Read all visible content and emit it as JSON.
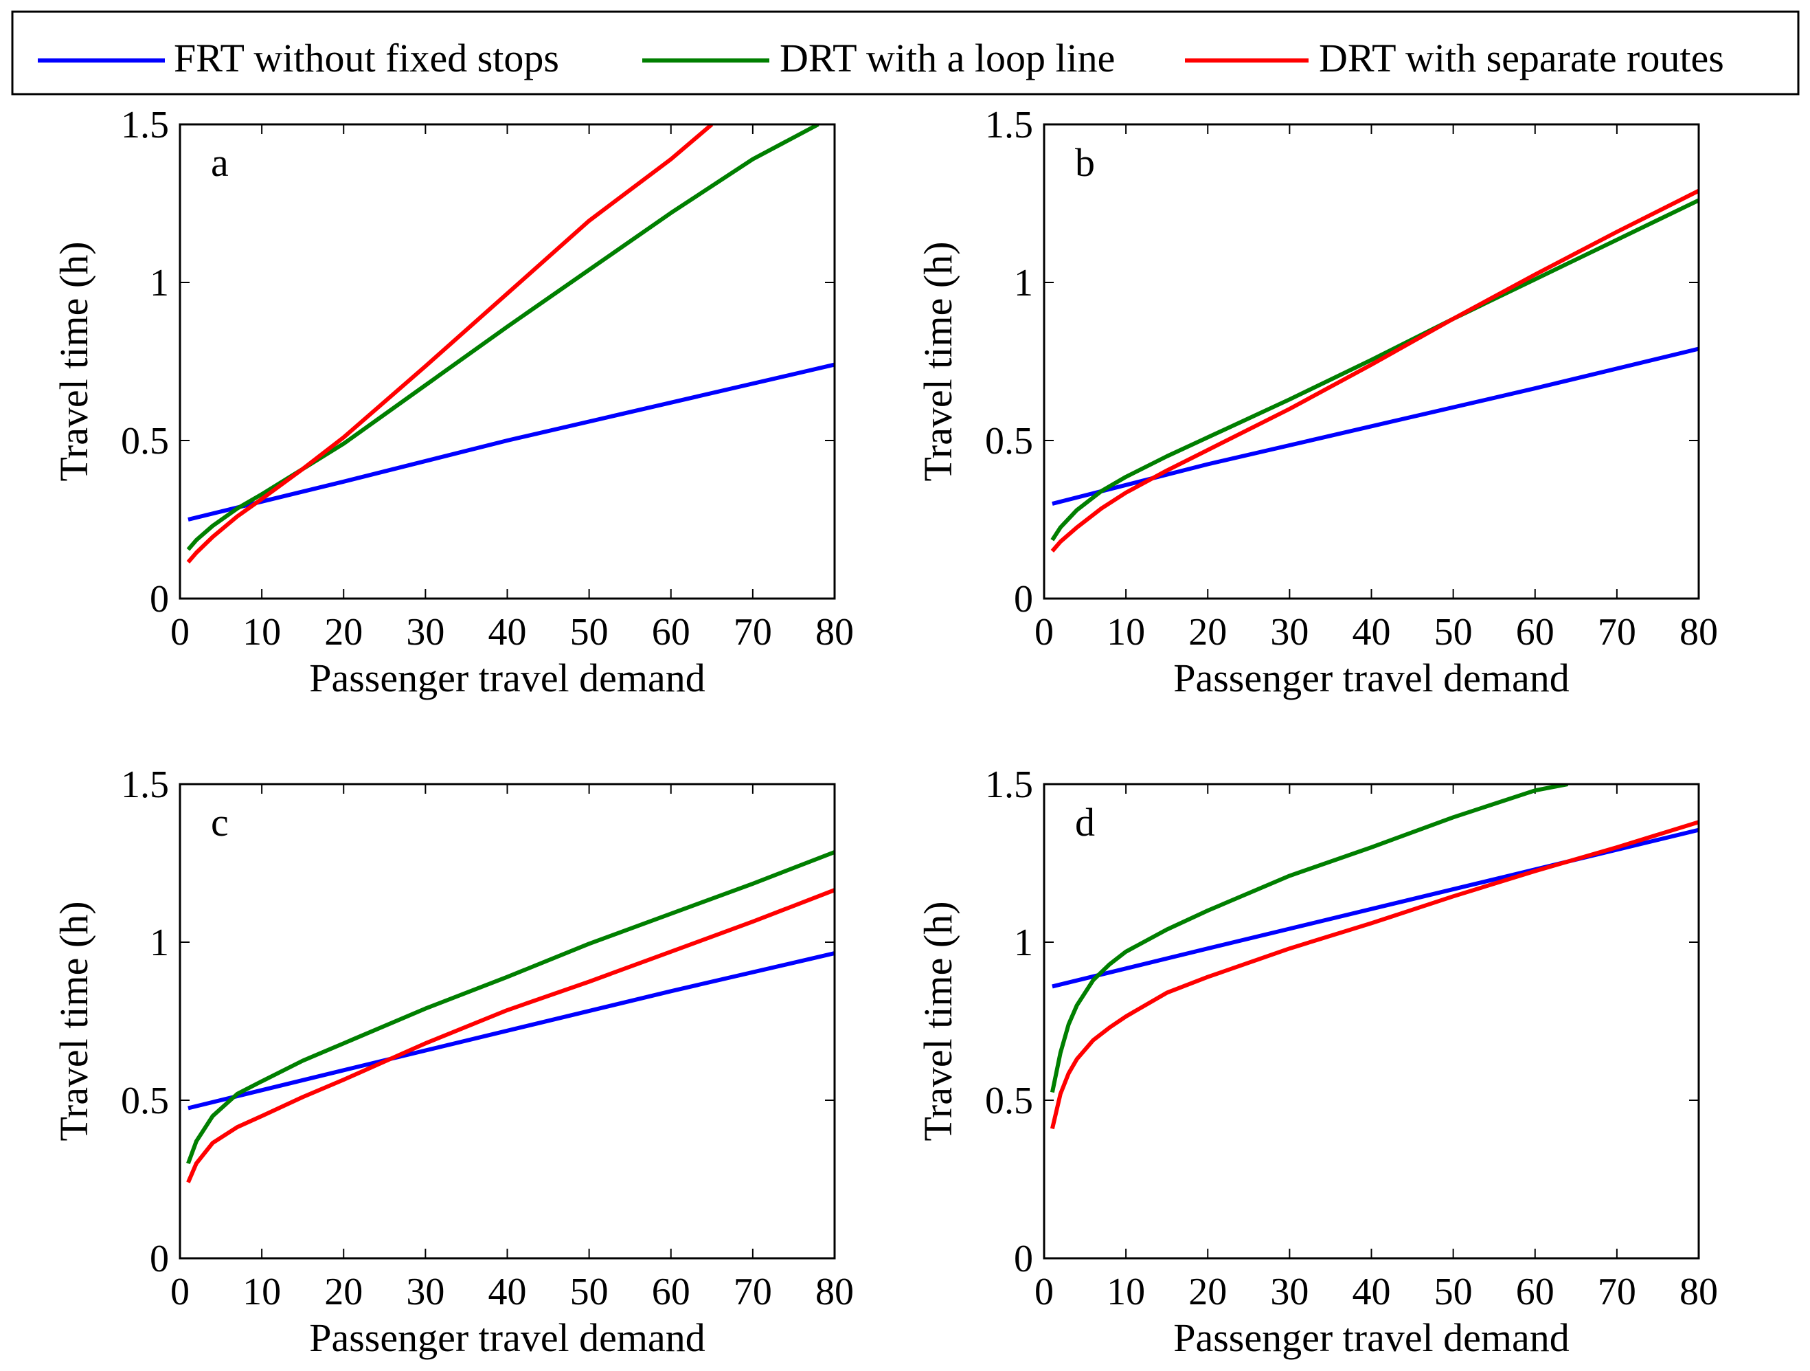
{
  "legend": {
    "items": [
      {
        "label": "FRT without fixed stops",
        "color": "#0000ff"
      },
      {
        "label": "DRT with a loop line",
        "color": "#007f00"
      },
      {
        "label": "DRT with separate routes",
        "color": "#ff0000"
      }
    ]
  },
  "chart_data": [
    {
      "type": "line",
      "panel_label": "a",
      "xlabel": "Passenger travel demand",
      "ylabel": "Travel time (h)",
      "xlim": [
        0,
        80
      ],
      "ylim": [
        0,
        1.5
      ],
      "xticks": [
        "0",
        "10",
        "20",
        "30",
        "40",
        "50",
        "60",
        "70",
        "80"
      ],
      "yticks": [
        "0",
        "0.5",
        "1",
        "1.5"
      ],
      "series": [
        {
          "name": "FRT without fixed stops",
          "color": "#0000ff",
          "x": [
            1,
            20,
            40,
            60,
            80
          ],
          "y": [
            0.25,
            0.37,
            0.5,
            0.62,
            0.74
          ]
        },
        {
          "name": "DRT with a loop line",
          "color": "#007f00",
          "x": [
            1,
            2,
            4,
            7,
            10,
            15,
            20,
            30,
            40,
            50,
            60,
            70,
            78
          ],
          "y": [
            0.155,
            0.185,
            0.23,
            0.285,
            0.33,
            0.41,
            0.49,
            0.675,
            0.86,
            1.04,
            1.22,
            1.39,
            1.5
          ]
        },
        {
          "name": "DRT with separate routes",
          "color": "#ff0000",
          "x": [
            1,
            2,
            4,
            7,
            10,
            15,
            20,
            30,
            40,
            50,
            60,
            65
          ],
          "y": [
            0.115,
            0.145,
            0.195,
            0.26,
            0.315,
            0.41,
            0.51,
            0.735,
            0.965,
            1.195,
            1.39,
            1.5
          ]
        }
      ]
    },
    {
      "type": "line",
      "panel_label": "b",
      "xlabel": "Passenger travel demand",
      "ylabel": "Travel time (h)",
      "xlim": [
        0,
        80
      ],
      "ylim": [
        0,
        1.5
      ],
      "xticks": [
        "0",
        "10",
        "20",
        "30",
        "40",
        "50",
        "60",
        "70",
        "80"
      ],
      "yticks": [
        "0",
        "0.5",
        "1",
        "1.5"
      ],
      "series": [
        {
          "name": "FRT without fixed stops",
          "color": "#0000ff",
          "x": [
            1,
            20,
            40,
            60,
            80
          ],
          "y": [
            0.3,
            0.425,
            0.545,
            0.665,
            0.79
          ]
        },
        {
          "name": "DRT with a loop line",
          "color": "#007f00",
          "x": [
            1,
            2,
            4,
            7,
            10,
            15,
            20,
            30,
            40,
            50,
            60,
            70,
            80
          ],
          "y": [
            0.185,
            0.225,
            0.28,
            0.34,
            0.385,
            0.45,
            0.51,
            0.63,
            0.755,
            0.885,
            1.01,
            1.135,
            1.26
          ]
        },
        {
          "name": "DRT with separate routes",
          "color": "#ff0000",
          "x": [
            1,
            2,
            4,
            7,
            10,
            15,
            20,
            30,
            40,
            50,
            60,
            70,
            80
          ],
          "y": [
            0.15,
            0.18,
            0.225,
            0.285,
            0.335,
            0.405,
            0.47,
            0.6,
            0.74,
            0.885,
            1.025,
            1.16,
            1.29
          ]
        }
      ]
    },
    {
      "type": "line",
      "panel_label": "c",
      "xlabel": "Passenger travel demand",
      "ylabel": "Travel time (h)",
      "xlim": [
        0,
        80
      ],
      "ylim": [
        0,
        1.5
      ],
      "xticks": [
        "0",
        "10",
        "20",
        "30",
        "40",
        "50",
        "60",
        "70",
        "80"
      ],
      "yticks": [
        "0",
        "0.5",
        "1",
        "1.5"
      ],
      "series": [
        {
          "name": "FRT without fixed stops",
          "color": "#0000ff",
          "x": [
            1,
            20,
            40,
            60,
            80
          ],
          "y": [
            0.475,
            0.595,
            0.72,
            0.845,
            0.965
          ]
        },
        {
          "name": "DRT with a loop line",
          "color": "#007f00",
          "x": [
            1,
            2,
            4,
            7,
            10,
            15,
            20,
            30,
            40,
            50,
            60,
            70,
            80
          ],
          "y": [
            0.3,
            0.37,
            0.45,
            0.52,
            0.56,
            0.625,
            0.68,
            0.79,
            0.89,
            0.995,
            1.09,
            1.185,
            1.285
          ]
        },
        {
          "name": "DRT with separate routes",
          "color": "#ff0000",
          "x": [
            1,
            2,
            4,
            7,
            10,
            15,
            20,
            30,
            40,
            50,
            60,
            70,
            80
          ],
          "y": [
            0.24,
            0.3,
            0.365,
            0.415,
            0.45,
            0.51,
            0.565,
            0.68,
            0.785,
            0.875,
            0.97,
            1.065,
            1.165
          ]
        }
      ]
    },
    {
      "type": "line",
      "panel_label": "d",
      "xlabel": "Passenger travel demand",
      "ylabel": "Travel time (h)",
      "xlim": [
        0,
        80
      ],
      "ylim": [
        0,
        1.5
      ],
      "xticks": [
        "0",
        "10",
        "20",
        "30",
        "40",
        "50",
        "60",
        "70",
        "80"
      ],
      "yticks": [
        "0",
        "0.5",
        "1",
        "1.5"
      ],
      "series": [
        {
          "name": "FRT without fixed stops",
          "color": "#0000ff",
          "x": [
            1,
            20,
            40,
            60,
            80
          ],
          "y": [
            0.86,
            0.98,
            1.105,
            1.23,
            1.355
          ]
        },
        {
          "name": "DRT with a loop line",
          "color": "#007f00",
          "x": [
            1,
            2,
            3,
            4,
            6,
            8,
            10,
            15,
            20,
            30,
            40,
            50,
            60,
            64
          ],
          "y": [
            0.525,
            0.65,
            0.74,
            0.8,
            0.88,
            0.93,
            0.97,
            1.04,
            1.1,
            1.21,
            1.3,
            1.395,
            1.48,
            1.5
          ]
        },
        {
          "name": "DRT with separate routes",
          "color": "#ff0000",
          "x": [
            1,
            2,
            3,
            4,
            6,
            8,
            10,
            15,
            20,
            30,
            40,
            50,
            60,
            70,
            80
          ],
          "y": [
            0.41,
            0.52,
            0.585,
            0.63,
            0.69,
            0.73,
            0.765,
            0.84,
            0.89,
            0.98,
            1.06,
            1.145,
            1.225,
            1.3,
            1.38
          ]
        }
      ]
    }
  ]
}
